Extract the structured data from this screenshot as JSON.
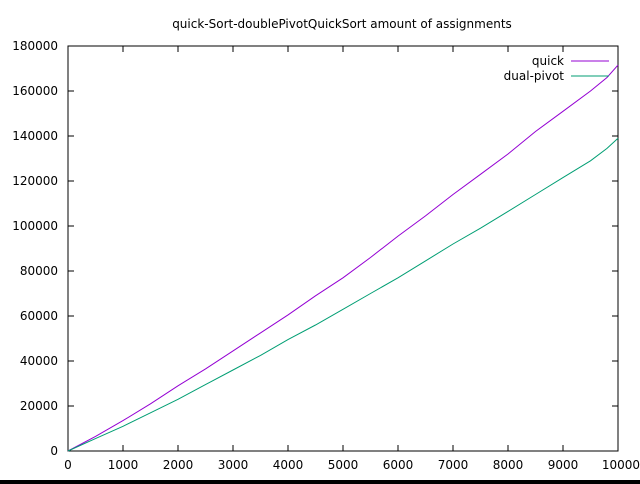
{
  "chart_data": {
    "type": "line",
    "title": "quick-Sort-doublePivotQuickSort amount of assignments",
    "xlabel": "",
    "ylabel": "",
    "xlim": [
      0,
      10000
    ],
    "ylim": [
      0,
      180000
    ],
    "x_ticks": [
      0,
      1000,
      2000,
      3000,
      4000,
      5000,
      6000,
      7000,
      8000,
      9000,
      10000
    ],
    "y_ticks": [
      0,
      20000,
      40000,
      60000,
      80000,
      100000,
      120000,
      140000,
      160000,
      180000
    ],
    "grid": false,
    "legend_position": "top-right",
    "x": [
      0,
      500,
      1000,
      1500,
      2000,
      2500,
      3000,
      3500,
      4000,
      4500,
      5000,
      5500,
      6000,
      6500,
      7000,
      7500,
      8000,
      8500,
      9000,
      9500,
      9800,
      10000
    ],
    "series": [
      {
        "name": "quick",
        "color": "#9400d3",
        "values": [
          0,
          6500,
          13500,
          21000,
          29000,
          36500,
          44500,
          52500,
          60500,
          69000,
          77000,
          86000,
          95500,
          104500,
          114000,
          123000,
          132000,
          142000,
          151000,
          160000,
          166000,
          171500
        ]
      },
      {
        "name": "dual-pivot",
        "color": "#009e73",
        "values": [
          0,
          5500,
          11000,
          17000,
          23000,
          29500,
          36000,
          42500,
          49500,
          56000,
          63000,
          70000,
          77000,
          84500,
          92000,
          99000,
          106500,
          114000,
          121500,
          129000,
          134500,
          139000
        ]
      }
    ]
  }
}
